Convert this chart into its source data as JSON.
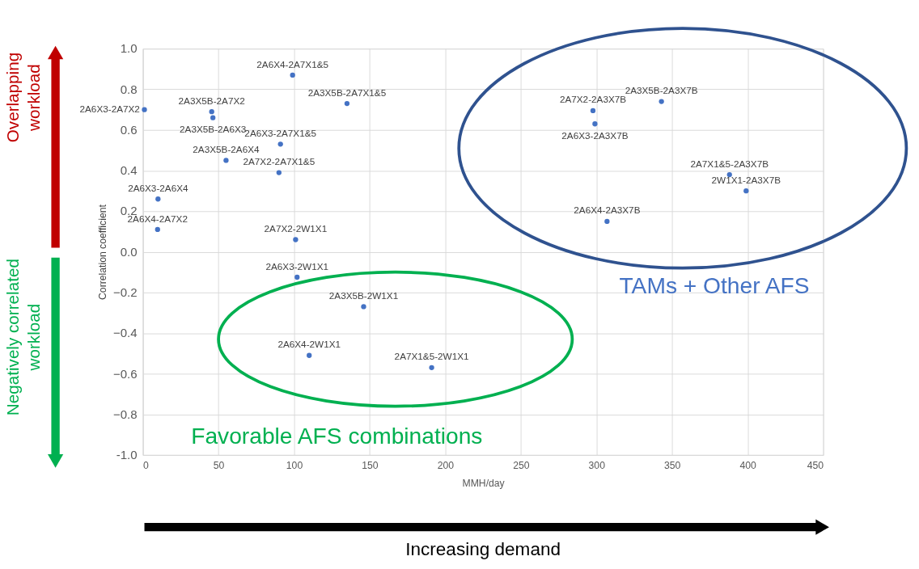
{
  "chart_data": {
    "type": "scatter",
    "xlabel": "MMH/day",
    "ylabel": "Correlation coefficient",
    "x": [
      1,
      45.5,
      46.3,
      99,
      135,
      91,
      55,
      90,
      10,
      9.7,
      101,
      102,
      146,
      110,
      191,
      297.7,
      299,
      343,
      388,
      399,
      307
    ],
    "values": [
      0.7,
      0.69,
      0.66,
      0.87,
      0.73,
      0.53,
      0.45,
      0.39,
      0.26,
      0.11,
      0.06,
      -0.125,
      -0.27,
      -0.51,
      -0.57,
      0.695,
      0.63,
      0.74,
      0.38,
      0.3,
      0.15
    ],
    "color": "#4472c4",
    "marker": "circle",
    "grid": true,
    "xlim": [
      0,
      450
    ],
    "xticks": [
      0,
      50,
      100,
      150,
      200,
      250,
      300,
      350,
      400,
      450
    ],
    "ylim": [
      -1.0,
      1.0
    ],
    "yticks": [
      {
        "value": -1.0,
        "label": "-1.0"
      },
      -0.8,
      -0.6,
      -0.4,
      -0.2,
      {
        "value": 0,
        "label": "0.0"
      },
      0.2,
      0.4,
      0.6,
      0.8,
      {
        "value": 1.0,
        "label": "1.0"
      }
    ],
    "annotations": [
      {
        "text": "2A6X3-2A7X2",
        "x": 1,
        "y": 0.7
      },
      {
        "text": "2A3X5B-2A7X2",
        "x": 45.5,
        "y": 0.69
      },
      {
        "text": "2A3X5B-2A6X3",
        "x": 46.3,
        "y": 0.66
      },
      {
        "text": "2A6X4-2A7X1&5",
        "x": 99,
        "y": 0.87
      },
      {
        "text": "2A3X5B-2A7X1&5",
        "x": 135,
        "y": 0.73
      },
      {
        "text": "2A6X3-2A7X1&5",
        "x": 91,
        "y": 0.53
      },
      {
        "text": "2A3X5B-2A6X4",
        "x": 55,
        "y": 0.45
      },
      {
        "text": "2A7X2-2A7X1&5",
        "x": 90,
        "y": 0.39
      },
      {
        "text": "2A6X3-2A6X4",
        "x": 10,
        "y": 0.26
      },
      {
        "text": "2A6X4-2A7X2",
        "x": 9.7,
        "y": 0.11
      },
      {
        "text": "2A7X2-2W1X1",
        "x": 101,
        "y": 0.06
      },
      {
        "text": "2A6X3-2W1X1",
        "x": 102,
        "y": -0.125
      },
      {
        "text": "2A3X5B-2W1X1",
        "x": 146,
        "y": -0.27
      },
      {
        "text": "2A6X4-2W1X1",
        "x": 110,
        "y": -0.51
      },
      {
        "text": "2A7X1&5-2W1X1",
        "x": 191,
        "y": -0.57
      },
      {
        "text": "2A7X2-2A3X7B",
        "x": 297.7,
        "y": 0.695
      },
      {
        "text": "2A6X3-2A3X7B",
        "x": 299,
        "y": 0.63
      },
      {
        "text": "2A3X5B-2A3X7B",
        "x": 343,
        "y": 0.74
      },
      {
        "text": "2A7X1&5-2A3X7B",
        "x": 388,
        "y": 0.38
      },
      {
        "text": "2W1X1-2A3X7B",
        "x": 399,
        "y": 0.3
      },
      {
        "text": "2A6X4-2A3X7B",
        "x": 307,
        "y": 0.15
      },
      "TAMs + Other AFS",
      "Favorable AFS combinations",
      "Overlapping\nworkload",
      "Negatively correlated\nworkload",
      "Increasing demand"
    ]
  }
}
